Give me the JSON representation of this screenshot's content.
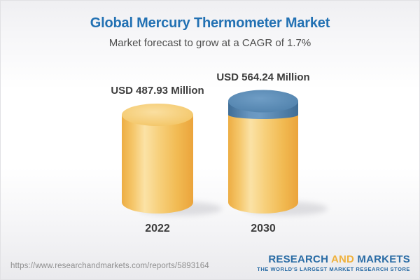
{
  "chart_data": {
    "type": "bar",
    "bar_style": "3d-cylinder",
    "title": "Global Mercury Thermometer Market",
    "subtitle": "Market forecast to grow at a CAGR of 1.7%",
    "cagr_pct": 1.7,
    "categories": [
      "2022",
      "2030"
    ],
    "values": [
      487.93,
      564.24
    ],
    "value_labels": [
      "USD 487.93 Million",
      "USD 564.24 Million"
    ],
    "unit": "USD Million",
    "xlabel": "",
    "ylabel": "",
    "ylim": [
      0,
      564.24
    ],
    "grid": false,
    "legend": "none",
    "base_color": "#F5C766",
    "cap_color": "#5C8EB9"
  },
  "footer": {
    "source_url": "https://www.researchandmarkets.com/reports/5893164",
    "logo": {
      "word1": "RESEARCH",
      "word2": "AND",
      "word3": "MARKETS",
      "tagline": "THE WORLD'S LARGEST MARKET RESEARCH STORE"
    }
  },
  "colors": {
    "title_blue": "#2271B3",
    "logo_blue": "#2A6CA5",
    "logo_gold": "#EFB13C",
    "label_dark": "#3D3D3D",
    "url_gray": "#8E8E8E"
  }
}
